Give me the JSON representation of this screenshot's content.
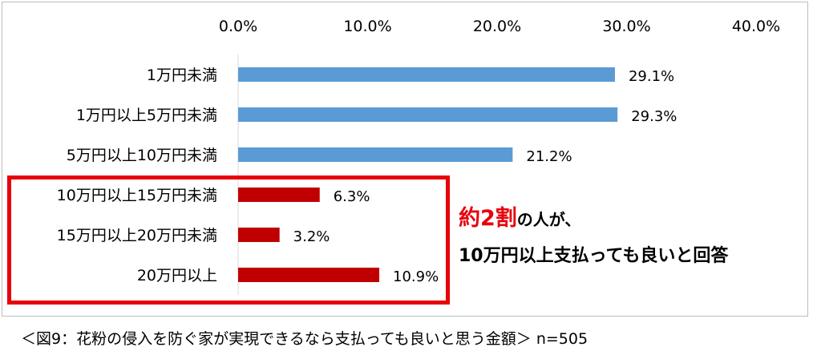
{
  "chart_data": {
    "type": "bar",
    "orientation": "horizontal",
    "categories": [
      "1万円未満",
      "1万円以上5万円未満",
      "5万円以上10万円未満",
      "10万円以上15万円未満",
      "15万円以上20万円未満",
      "20万円以上"
    ],
    "values": [
      29.1,
      29.3,
      21.2,
      6.3,
      3.2,
      10.9
    ],
    "data_labels": [
      "29.1%",
      "29.3%",
      "21.2%",
      "6.3%",
      "3.2%",
      "10.9%"
    ],
    "bar_colors": [
      "#5b9bd5",
      "#5b9bd5",
      "#5b9bd5",
      "#c00000",
      "#c00000",
      "#c00000"
    ],
    "x_ticks": [
      "0.0%",
      "10.0%",
      "20.0%",
      "30.0%",
      "40.0%"
    ],
    "xlim": [
      0,
      40
    ],
    "x_axis_position": "top",
    "grid": false,
    "legend": false
  },
  "callout": {
    "highlight": "約2割",
    "line1_rest": "の人が、",
    "line2": "10万円以上支払っても良いと回答"
  },
  "caption": "＜図9：花粉の侵入を防ぐ家が実現できるなら支払っても良いと思う金額＞ n=505",
  "colors": {
    "highlight_red": "#e8000b"
  }
}
